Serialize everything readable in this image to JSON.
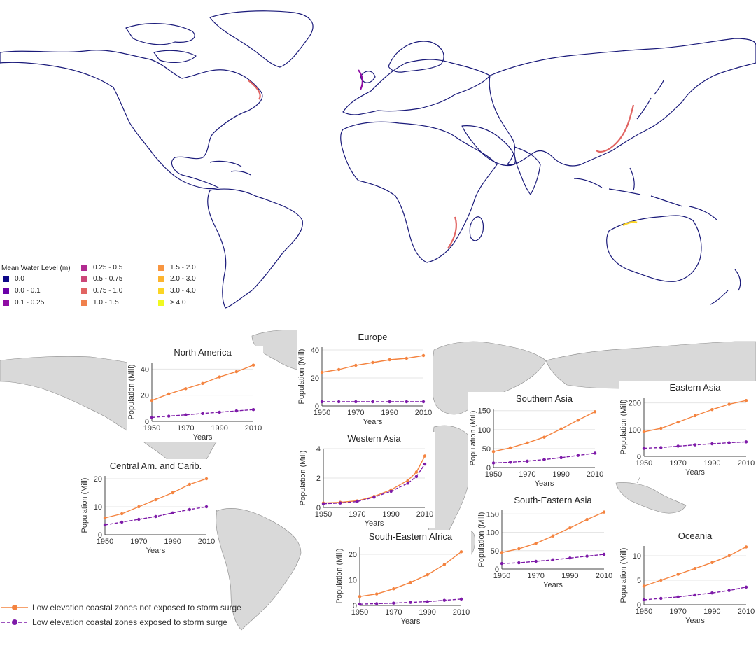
{
  "legend": {
    "title": "Mean Water Level (m)",
    "items": [
      {
        "label": "0.0",
        "color": "#0d0887"
      },
      {
        "label": "0.0 - 0.1",
        "color": "#6a00a8"
      },
      {
        "label": "0.1 - 0.25",
        "color": "#8f0da4"
      },
      {
        "label": "0.25 - 0.5",
        "color": "#b12a90"
      },
      {
        "label": "0.5 - 0.75",
        "color": "#cc4778"
      },
      {
        "label": "0.75 - 1.0",
        "color": "#e16462"
      },
      {
        "label": "1.0 - 1.5",
        "color": "#f0804c"
      },
      {
        "label": "1.5 - 2.0",
        "color": "#f89540"
      },
      {
        "label": "2.0 - 3.0",
        "color": "#fdb42f"
      },
      {
        "label": "3.0 - 4.0",
        "color": "#fbd524"
      },
      {
        "label": "> 4.0",
        "color": "#f0f921"
      }
    ]
  },
  "bottom_legend": {
    "items": [
      {
        "label": "Low elevation coastal zones not exposed to storm surge",
        "color": "#f4833f"
      },
      {
        "label": "Low elevation coastal zones exposed to storm surge",
        "color": "#7d1aa8"
      }
    ]
  },
  "chart_data": [
    {
      "type": "line",
      "title": "North America",
      "xlabel": "Years",
      "ylabel": "Population (Mill)",
      "x": [
        1950,
        1960,
        1970,
        1980,
        1990,
        2000,
        2010
      ],
      "xticks": [
        1950,
        1970,
        1990,
        2010
      ],
      "yticks": [
        0,
        20,
        40
      ],
      "ylim": [
        0,
        45
      ],
      "series": [
        {
          "values": [
            16,
            21,
            25,
            29,
            34,
            38,
            43
          ]
        },
        {
          "values": [
            3,
            4,
            5,
            6,
            7,
            8,
            9
          ]
        }
      ]
    },
    {
      "type": "line",
      "title": "Europe",
      "xlabel": "Years",
      "ylabel": "Population (Mill)",
      "x": [
        1950,
        1960,
        1970,
        1980,
        1990,
        2000,
        2010
      ],
      "xticks": [
        1950,
        1970,
        1990,
        2010
      ],
      "yticks": [
        0,
        20,
        40
      ],
      "ylim": [
        0,
        42
      ],
      "series": [
        {
          "values": [
            24,
            26,
            29,
            31,
            33,
            34,
            36
          ]
        },
        {
          "values": [
            3,
            3,
            3,
            3,
            3,
            3,
            3
          ]
        }
      ]
    },
    {
      "type": "line",
      "title": "Southern Asia",
      "xlabel": "Years",
      "ylabel": "Population (Mill)",
      "x": [
        1950,
        1960,
        1970,
        1980,
        1990,
        2000,
        2010
      ],
      "xticks": [
        1950,
        1970,
        1990,
        2010
      ],
      "yticks": [
        0,
        50,
        100,
        150
      ],
      "ylim": [
        0,
        155
      ],
      "series": [
        {
          "values": [
            42,
            52,
            65,
            80,
            102,
            125,
            147
          ]
        },
        {
          "values": [
            12,
            14,
            17,
            21,
            26,
            32,
            38
          ]
        }
      ]
    },
    {
      "type": "line",
      "title": "Eastern Asia",
      "xlabel": "Years",
      "ylabel": "Population (Mill)",
      "x": [
        1950,
        1960,
        1970,
        1980,
        1990,
        2000,
        2010
      ],
      "xticks": [
        1950,
        1970,
        1990,
        2010
      ],
      "yticks": [
        0,
        100,
        200
      ],
      "ylim": [
        0,
        220
      ],
      "series": [
        {
          "values": [
            92,
            105,
            128,
            152,
            175,
            195,
            209
          ]
        },
        {
          "values": [
            30,
            33,
            38,
            43,
            47,
            51,
            54
          ]
        }
      ]
    },
    {
      "type": "line",
      "title": "Central Am. and Carib.",
      "xlabel": "Years",
      "ylabel": "Population (Mill)",
      "x": [
        1950,
        1960,
        1970,
        1980,
        1990,
        2000,
        2010
      ],
      "xticks": [
        1950,
        1970,
        1990,
        2010
      ],
      "yticks": [
        0,
        10,
        20
      ],
      "ylim": [
        0,
        21
      ],
      "series": [
        {
          "values": [
            6,
            7.5,
            10,
            12.5,
            15,
            18,
            20
          ]
        },
        {
          "values": [
            3.5,
            4.5,
            5.5,
            6.5,
            7.8,
            9,
            10
          ]
        }
      ]
    },
    {
      "type": "line",
      "title": "Western Asia",
      "xlabel": "Years",
      "ylabel": "Population (Mill)",
      "x": [
        1950,
        1960,
        1970,
        1980,
        1990,
        2000,
        2005,
        2010
      ],
      "xticks": [
        1950,
        1970,
        1990,
        2010
      ],
      "yticks": [
        0,
        2,
        4
      ],
      "ylim": [
        0,
        4
      ],
      "series": [
        {
          "values": [
            0.3,
            0.35,
            0.45,
            0.75,
            1.2,
            1.85,
            2.4,
            3.5
          ]
        },
        {
          "values": [
            0.25,
            0.3,
            0.4,
            0.7,
            1.1,
            1.65,
            2.1,
            2.95
          ]
        }
      ]
    },
    {
      "type": "line",
      "title": "South-Eastern Asia",
      "xlabel": "Years",
      "ylabel": "Population (Mill)",
      "x": [
        1950,
        1960,
        1970,
        1980,
        1990,
        2000,
        2010
      ],
      "xticks": [
        1950,
        1970,
        1990,
        2010
      ],
      "yticks": [
        0,
        50,
        100,
        150
      ],
      "ylim": [
        0,
        160
      ],
      "series": [
        {
          "values": [
            45,
            55,
            70,
            90,
            112,
            135,
            155
          ]
        },
        {
          "values": [
            15,
            17,
            21,
            25,
            30,
            35,
            40
          ]
        }
      ]
    },
    {
      "type": "line",
      "title": "South-Eastern Africa",
      "xlabel": "Years",
      "ylabel": "Population (Mill)",
      "x": [
        1950,
        1960,
        1970,
        1980,
        1990,
        2000,
        2010
      ],
      "xticks": [
        1950,
        1970,
        1990,
        2010
      ],
      "yticks": [
        0,
        10,
        20
      ],
      "ylim": [
        0,
        23
      ],
      "series": [
        {
          "values": [
            3.5,
            4.5,
            6.5,
            9,
            12,
            16,
            21
          ]
        },
        {
          "values": [
            0.5,
            0.7,
            0.9,
            1.2,
            1.5,
            2,
            2.5
          ]
        }
      ]
    },
    {
      "type": "line",
      "title": "Oceania",
      "xlabel": "Years",
      "ylabel": "Population (Mill)",
      "x": [
        1950,
        1960,
        1970,
        1980,
        1990,
        2000,
        2010
      ],
      "xticks": [
        1950,
        1970,
        1990,
        2010
      ],
      "yticks": [
        0,
        5,
        10
      ],
      "ylim": [
        0,
        12
      ],
      "series": [
        {
          "values": [
            3.8,
            5,
            6.2,
            7.4,
            8.6,
            10,
            11.8
          ]
        },
        {
          "values": [
            1,
            1.3,
            1.6,
            2,
            2.4,
            2.9,
            3.6
          ]
        }
      ]
    }
  ]
}
